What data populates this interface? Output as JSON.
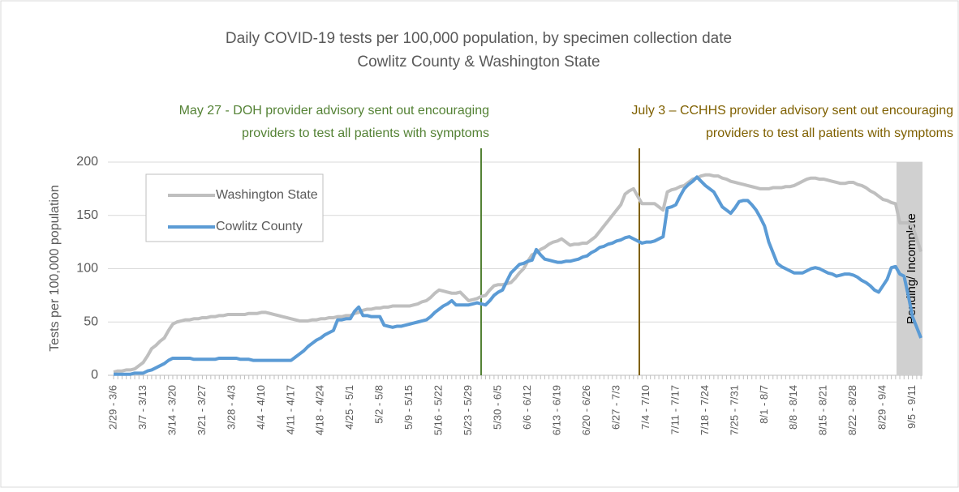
{
  "chart_data": {
    "type": "line",
    "title": [
      "Daily COVID-19 tests per 100,000 population, by specimen collection date",
      "Cowlitz County & Washington State"
    ],
    "y_label": "Tests per 100,000 population",
    "ylim": [
      0,
      200
    ],
    "yticks": [
      0,
      50,
      100,
      150,
      200
    ],
    "grid": true,
    "legend": "upper left",
    "annotations": [
      {
        "lines": [
          "May 27 - DOH provider advisory sent out encouraging",
          "providers to test all patients with symptoms"
        ],
        "color": "#548235"
      },
      {
        "lines": [
          "July 3 – CCHHS provider advisory sent out encouraging",
          "providers to test all patients with symptoms"
        ],
        "color": "#7f6000"
      }
    ],
    "pending_label": "Pending/ Incomplete",
    "categories": [
      "2/29 - 3/6",
      null,
      null,
      null,
      null,
      null,
      null,
      "3/7 - 3/13",
      null,
      null,
      null,
      null,
      null,
      null,
      "3/14 - 3/20",
      null,
      null,
      null,
      null,
      null,
      null,
      "3/21 - 3/27",
      null,
      null,
      null,
      null,
      null,
      null,
      "3/28 - 4/3",
      null,
      null,
      null,
      null,
      null,
      null,
      "4/4 - 4/10",
      null,
      null,
      null,
      null,
      null,
      null,
      "4/11 - 4/17",
      null,
      null,
      null,
      null,
      null,
      null,
      "4/18 - 4/24",
      null,
      null,
      null,
      null,
      null,
      null,
      "4/25 - 5/1",
      null,
      null,
      null,
      null,
      null,
      null,
      "5/2 - 5/8",
      null,
      null,
      null,
      null,
      null,
      null,
      "5/9 - 5/15",
      null,
      null,
      null,
      null,
      null,
      null,
      "5/16 - 5/22",
      null,
      null,
      null,
      null,
      null,
      null,
      "5/23 - 5/29",
      null,
      null,
      null,
      null,
      null,
      null,
      "5/30 - 6/5",
      null,
      null,
      null,
      null,
      null,
      null,
      "6/6 - 6/12",
      null,
      null,
      null,
      null,
      null,
      null,
      "6/13 - 6/19",
      null,
      null,
      null,
      null,
      null,
      null,
      "6/20 - 6/26",
      null,
      null,
      null,
      null,
      null,
      null,
      "6/27 - 7/3",
      null,
      null,
      null,
      null,
      null,
      null,
      "7/4 - 7/10",
      null,
      null,
      null,
      null,
      null,
      null,
      "7/11 - 7/17",
      null,
      null,
      null,
      null,
      null,
      null,
      "7/18 - 7/24",
      null,
      null,
      null,
      null,
      null,
      null,
      "7/25 - 7/31",
      null,
      null,
      null,
      null,
      null,
      null,
      "8/1 - 8/7",
      null,
      null,
      null,
      null,
      null,
      null,
      "8/8 - 8/14",
      null,
      null,
      null,
      null,
      null,
      null,
      "8/15 - 8/21",
      null,
      null,
      null,
      null,
      null,
      null,
      "8/22 - 8/28",
      null,
      null,
      null,
      null,
      null,
      null,
      "8/29 - 9/4",
      null,
      null,
      null,
      null,
      null,
      null,
      "9/5 - 9/11",
      null,
      null
    ],
    "series": [
      {
        "name": "Washington State",
        "color": "#bfbfbf",
        "values": [
          3,
          4,
          4,
          5,
          5,
          6,
          9,
          12,
          18,
          25,
          28,
          32,
          35,
          42,
          48,
          50,
          51,
          52,
          52,
          53,
          53,
          54,
          54,
          55,
          55,
          56,
          56,
          57,
          57,
          57,
          57,
          57,
          58,
          58,
          58,
          59,
          59,
          58,
          57,
          56,
          55,
          54,
          53,
          52,
          51,
          51,
          51,
          52,
          52,
          53,
          53,
          54,
          54,
          55,
          55,
          56,
          56,
          58,
          59,
          61,
          62,
          62,
          63,
          63,
          64,
          64,
          65,
          65,
          65,
          65,
          65,
          66,
          67,
          69,
          70,
          73,
          77,
          80,
          79,
          78,
          77,
          77,
          78,
          74,
          70,
          71,
          72,
          74,
          75,
          80,
          84,
          85,
          85,
          86,
          87,
          91,
          96,
          100,
          107,
          113,
          115,
          118,
          120,
          123,
          125,
          126,
          128,
          125,
          122,
          123,
          123,
          124,
          124,
          127,
          130,
          135,
          140,
          145,
          150,
          155,
          160,
          170,
          173,
          175,
          168,
          161,
          161,
          161,
          161,
          158,
          155,
          172,
          174,
          175,
          177,
          178,
          181,
          184,
          185,
          187,
          188,
          188,
          187,
          187,
          185,
          184,
          182,
          181,
          180,
          179,
          178,
          177,
          176,
          175,
          175,
          175,
          176,
          176,
          176,
          177,
          177,
          178,
          180,
          182,
          184,
          185,
          185,
          184,
          184,
          183,
          182,
          181,
          180,
          180,
          181,
          181,
          179,
          178,
          176,
          173,
          171,
          168,
          165,
          164,
          162,
          161,
          143,
          143,
          143,
          140,
          128,
          116
        ]
      },
      {
        "name": "Cowlitz County",
        "color": "#5b9bd5",
        "values": [
          1,
          1,
          1,
          1,
          1,
          2,
          2,
          2,
          4,
          5,
          7,
          9,
          11,
          14,
          16,
          16,
          16,
          16,
          16,
          15,
          15,
          15,
          15,
          15,
          15,
          16,
          16,
          16,
          16,
          16,
          15,
          15,
          15,
          14,
          14,
          14,
          14,
          14,
          14,
          14,
          14,
          14,
          14,
          17,
          20,
          23,
          27,
          30,
          33,
          35,
          38,
          40,
          42,
          52,
          52,
          53,
          53,
          60,
          64,
          56,
          56,
          55,
          55,
          55,
          47,
          46,
          45,
          46,
          46,
          47,
          48,
          49,
          50,
          51,
          52,
          55,
          59,
          62,
          65,
          67,
          70,
          66,
          66,
          66,
          66,
          67,
          68,
          67,
          66,
          70,
          75,
          78,
          80,
          88,
          96,
          100,
          104,
          105,
          107,
          108,
          118,
          113,
          109,
          108,
          107,
          106,
          106,
          107,
          107,
          108,
          109,
          111,
          112,
          115,
          117,
          120,
          121,
          123,
          124,
          126,
          127,
          129,
          130,
          128,
          126,
          124,
          125,
          125,
          126,
          128,
          130,
          157,
          158,
          160,
          168,
          175,
          179,
          182,
          186,
          182,
          178,
          175,
          172,
          165,
          158,
          155,
          152,
          157,
          163,
          164,
          164,
          160,
          155,
          148,
          140,
          125,
          115,
          105,
          102,
          100,
          98,
          96,
          96,
          96,
          98,
          100,
          101,
          100,
          98,
          96,
          95,
          93,
          94,
          95,
          95,
          94,
          92,
          89,
          87,
          84,
          80,
          78,
          84,
          90,
          101,
          102,
          95,
          93,
          75,
          55,
          45,
          35
        ]
      }
    ]
  }
}
